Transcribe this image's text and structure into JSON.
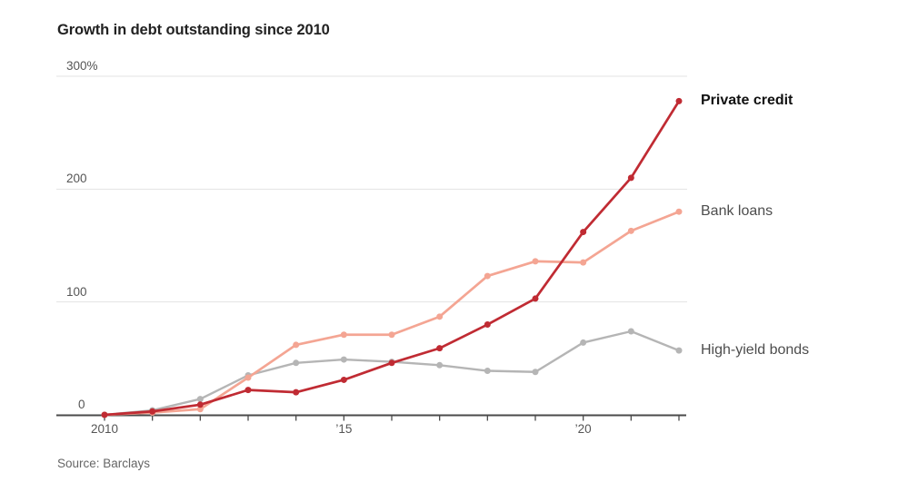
{
  "header": {
    "title": "Growth in debt outstanding since 2010"
  },
  "footer": {
    "source": "Source: Barclays"
  },
  "colors": {
    "background": "#ffffff",
    "axis": "#4a4a4a",
    "gridline": "#e3e3e3",
    "tick_label": "#555555",
    "title_text": "#222222",
    "source_text": "#666666"
  },
  "chart_data": {
    "type": "line",
    "title": "Growth in debt outstanding since 2010",
    "xlabel": "",
    "ylabel": "",
    "x": [
      2010,
      2011,
      2012,
      2013,
      2014,
      2015,
      2016,
      2017,
      2018,
      2019,
      2020,
      2021,
      2022
    ],
    "series": [
      {
        "name": "Private credit",
        "color": "#c02b33",
        "label_color": "#111111",
        "label_weight": "bold",
        "line_width": 2.7,
        "values": [
          0,
          3,
          9,
          22,
          20,
          31,
          46,
          59,
          80,
          103,
          162,
          210,
          278
        ]
      },
      {
        "name": "Bank loans",
        "color": "#f4a593",
        "label_color": "#4d4d4d",
        "label_weight": "normal",
        "line_width": 2.7,
        "values": [
          0,
          2,
          5,
          33,
          62,
          71,
          71,
          87,
          123,
          136,
          135,
          163,
          180
        ]
      },
      {
        "name": "High-yield bonds",
        "color": "#b5b5b5",
        "label_color": "#4d4d4d",
        "label_weight": "normal",
        "line_width": 2.4,
        "values": [
          0,
          4,
          14,
          35,
          46,
          49,
          47,
          44,
          39,
          38,
          64,
          74,
          57
        ]
      }
    ],
    "ylim": [
      0,
      300
    ],
    "yticks": [
      {
        "value": 300,
        "label": "300%"
      },
      {
        "value": 200,
        "label": "200"
      },
      {
        "value": 100,
        "label": "100"
      },
      {
        "value": 0,
        "label": "0"
      }
    ],
    "xticks": [
      {
        "value": 2010,
        "label": "2010"
      },
      {
        "value": 2015,
        "label": "’15"
      },
      {
        "value": 2020,
        "label": "’20"
      }
    ],
    "grid": true,
    "legend_position": "right-of-line-ends"
  }
}
